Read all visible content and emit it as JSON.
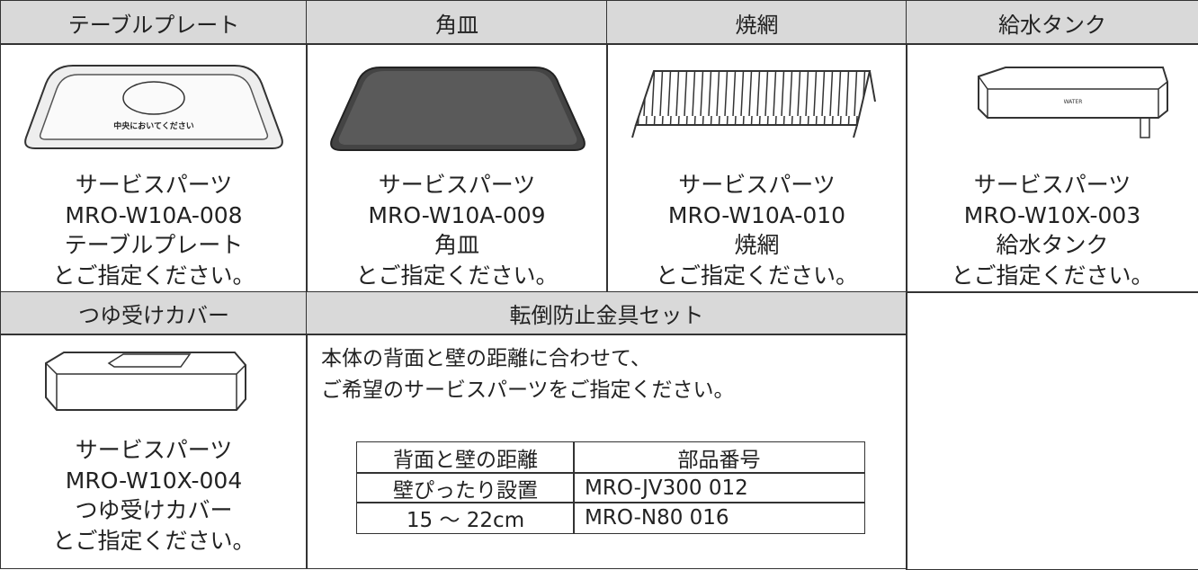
{
  "table": {
    "row1": {
      "headers": [
        "テーブルプレート",
        "角皿",
        "焼網",
        "給水タンク"
      ],
      "cells": [
        {
          "image_text": "中央においてください",
          "lines": [
            "サービスパーツ",
            "MRO-W10A-008",
            "テーブルプレート",
            "とご指定ください。"
          ]
        },
        {
          "lines": [
            "サービスパーツ",
            "MRO-W10A-009",
            "角皿",
            "とご指定ください。"
          ]
        },
        {
          "lines": [
            "サービスパーツ",
            "MRO-W10A-010",
            "焼網",
            "とご指定ください。"
          ]
        },
        {
          "image_text": "WATER",
          "lines": [
            "サービスパーツ",
            "MRO-W10X-003",
            "給水タンク",
            "とご指定ください。"
          ]
        }
      ]
    },
    "row2": {
      "headers": [
        "つゆ受けカバー",
        "転倒防止金具セット"
      ],
      "cell0": {
        "lines": [
          "サービスパーツ",
          "MRO-W10X-004",
          "つゆ受けカバー",
          "とご指定ください。"
        ]
      },
      "cell1": {
        "intro": [
          "本体の背面と壁の距離に合わせて、",
          "ご希望のサービスパーツをご指定ください。"
        ],
        "subtable": {
          "header": [
            "背面と壁の距離",
            "部品番号"
          ],
          "rows": [
            [
              "壁ぴったり設置",
              "MRO-JV300 012"
            ],
            [
              "15 ～ 22cm",
              "MRO-N80 016"
            ]
          ]
        }
      }
    }
  }
}
